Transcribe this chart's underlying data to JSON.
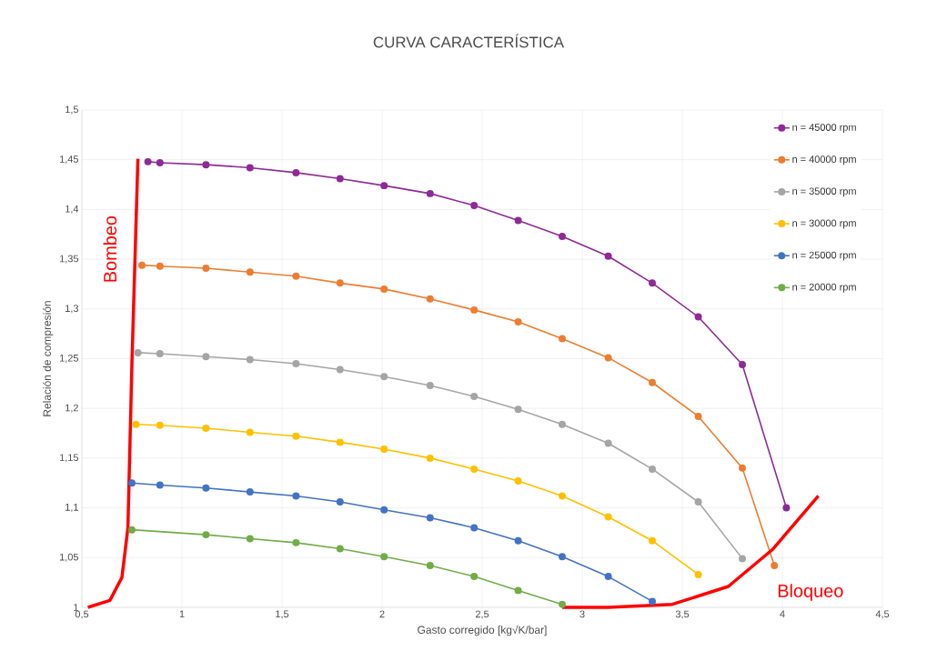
{
  "chart_data": {
    "type": "line",
    "title": "CURVA CARACTERÍSTICA",
    "xlabel": "Gasto corregido [kg√K/bar]",
    "ylabel": "Relación de compresión",
    "xlim": [
      0.5,
      4.5
    ],
    "ylim": [
      1,
      1.5
    ],
    "xticks": [
      {
        "value": 0.5,
        "label": "0,5"
      },
      1,
      {
        "value": 1.5,
        "label": "1,5"
      },
      2,
      {
        "value": 2.5,
        "label": "2,5"
      },
      3,
      {
        "value": 3.5,
        "label": "3,5"
      },
      4,
      {
        "value": 4.5,
        "label": "4,5"
      }
    ],
    "yticks": [
      1,
      {
        "value": 1.05,
        "label": "1,05"
      },
      {
        "value": 1.1,
        "label": "1,1"
      },
      {
        "value": 1.15,
        "label": "1,15"
      },
      {
        "value": 1.2,
        "label": "1,2"
      },
      {
        "value": 1.25,
        "label": "1,25"
      },
      {
        "value": 1.3,
        "label": "1,3"
      },
      {
        "value": 1.35,
        "label": "1,35"
      },
      {
        "value": 1.4,
        "label": "1,4"
      },
      {
        "value": 1.45,
        "label": "1,45"
      },
      {
        "value": 1.5,
        "label": "1,5"
      }
    ],
    "grid": true,
    "legend": "top right",
    "marker": "circle",
    "series": [
      {
        "name": "n = 45000 rpm",
        "color": "#8e2a96",
        "x": [
          0.83,
          0.89,
          1.12,
          1.34,
          1.57,
          1.79,
          2.01,
          2.24,
          2.46,
          2.68,
          2.9,
          3.13,
          3.35,
          3.58,
          3.8,
          4.02
        ],
        "values": [
          1.448,
          1.447,
          1.445,
          1.442,
          1.437,
          1.431,
          1.424,
          1.416,
          1.404,
          1.389,
          1.373,
          1.353,
          1.326,
          1.292,
          1.244,
          1.1
        ]
      },
      {
        "name": "n = 40000 rpm",
        "color": "#ed7d31",
        "x": [
          0.8,
          0.89,
          1.12,
          1.34,
          1.57,
          1.79,
          2.01,
          2.24,
          2.46,
          2.68,
          2.9,
          3.13,
          3.35,
          3.58,
          3.8,
          3.96
        ],
        "values": [
          1.344,
          1.343,
          1.341,
          1.337,
          1.333,
          1.326,
          1.32,
          1.31,
          1.299,
          1.287,
          1.27,
          1.251,
          1.226,
          1.192,
          1.14,
          1.042
        ]
      },
      {
        "name": "n = 35000 rpm",
        "color": "#a5a5a5",
        "x": [
          0.78,
          0.89,
          1.12,
          1.34,
          1.57,
          1.79,
          2.01,
          2.24,
          2.46,
          2.68,
          2.9,
          3.13,
          3.35,
          3.58,
          3.8
        ],
        "values": [
          1.256,
          1.255,
          1.252,
          1.249,
          1.245,
          1.239,
          1.232,
          1.223,
          1.212,
          1.199,
          1.184,
          1.165,
          1.139,
          1.106,
          1.049
        ]
      },
      {
        "name": "n = 30000 rpm",
        "color": "#ffc000",
        "x": [
          0.77,
          0.89,
          1.12,
          1.34,
          1.57,
          1.79,
          2.01,
          2.24,
          2.46,
          2.68,
          2.9,
          3.13,
          3.35,
          3.58
        ],
        "values": [
          1.184,
          1.183,
          1.18,
          1.176,
          1.172,
          1.166,
          1.159,
          1.15,
          1.139,
          1.127,
          1.112,
          1.091,
          1.067,
          1.033
        ]
      },
      {
        "name": "n = 25000 rpm",
        "color": "#4472c4",
        "x": [
          0.75,
          0.89,
          1.12,
          1.34,
          1.57,
          1.79,
          2.01,
          2.24,
          2.46,
          2.68,
          2.9,
          3.13,
          3.35
        ],
        "values": [
          1.125,
          1.123,
          1.12,
          1.116,
          1.112,
          1.106,
          1.098,
          1.09,
          1.08,
          1.067,
          1.051,
          1.031,
          1.006
        ]
      },
      {
        "name": "n = 20000 rpm",
        "color": "#70ad47",
        "x": [
          0.75,
          1.12,
          1.34,
          1.57,
          1.79,
          2.01,
          2.24,
          2.46,
          2.68,
          2.9
        ],
        "values": [
          1.078,
          1.073,
          1.069,
          1.065,
          1.059,
          1.051,
          1.042,
          1.031,
          1.017,
          1.003
        ]
      },
      {
        "color": "#ff0000",
        "marker": "none",
        "x": [
          0.53,
          0.64,
          0.7,
          0.73,
          0.75,
          0.78
        ],
        "values": [
          1.0,
          1.007,
          1.03,
          1.08,
          1.245,
          1.451
        ]
      },
      {
        "color": "#ff0000",
        "marker": "none",
        "x": [
          2.9,
          3.13,
          3.45,
          3.73,
          3.95,
          4.18
        ],
        "values": [
          1.0,
          1.0,
          1.003,
          1.021,
          1.058,
          1.112
        ]
      }
    ],
    "annotations": [
      "Bombeo",
      "Bloqueo"
    ]
  }
}
